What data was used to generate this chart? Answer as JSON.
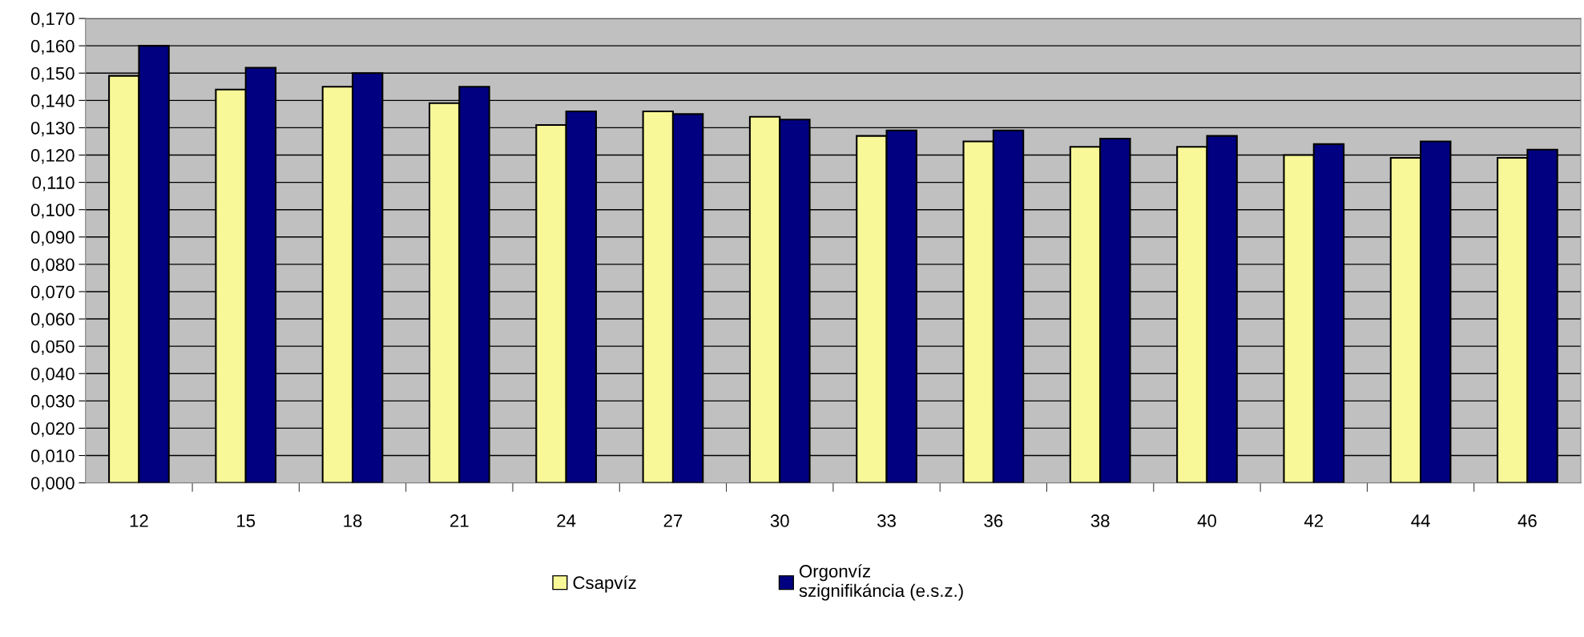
{
  "chart_data": {
    "type": "bar",
    "categories": [
      "12",
      "15",
      "18",
      "21",
      "24",
      "27",
      "30",
      "33",
      "36",
      "38",
      "40",
      "42",
      "44",
      "46"
    ],
    "series": [
      {
        "name": "Csapvíz",
        "color": "#f8f898",
        "values": [
          0.149,
          0.144,
          0.145,
          0.139,
          0.131,
          0.136,
          0.134,
          0.127,
          0.125,
          0.123,
          0.123,
          0.12,
          0.119,
          0.119
        ]
      },
      {
        "name": "Orgonvíz\nszignifikáncia (e.s.z.)",
        "color": "#000080",
        "values": [
          0.16,
          0.152,
          0.15,
          0.145,
          0.136,
          0.135,
          0.133,
          0.129,
          0.129,
          0.126,
          0.127,
          0.124,
          0.125,
          0.122
        ]
      }
    ],
    "ylim": [
      0,
      0.17
    ],
    "yticks": [
      {
        "value": 0,
        "label": "0,000"
      },
      {
        "value": 0.01,
        "label": "0,010"
      },
      {
        "value": 0.02,
        "label": "0,020"
      },
      {
        "value": 0.03,
        "label": "0,030"
      },
      {
        "value": 0.04,
        "label": "0,040"
      },
      {
        "value": 0.05,
        "label": "0,050"
      },
      {
        "value": 0.06,
        "label": "0,060"
      },
      {
        "value": 0.07,
        "label": "0,070"
      },
      {
        "value": 0.08,
        "label": "0,080"
      },
      {
        "value": 0.09,
        "label": "0,090"
      },
      {
        "value": 0.1,
        "label": "0,100"
      },
      {
        "value": 0.11,
        "label": "0,110"
      },
      {
        "value": 0.12,
        "label": "0,120"
      },
      {
        "value": 0.13,
        "label": "0,130"
      },
      {
        "value": 0.14,
        "label": "0,140"
      },
      {
        "value": 0.15,
        "label": "0,150"
      },
      {
        "value": 0.16,
        "label": "0,160"
      },
      {
        "value": 0.17,
        "label": "0,170"
      }
    ],
    "grid": "y",
    "legend": "bottom"
  }
}
